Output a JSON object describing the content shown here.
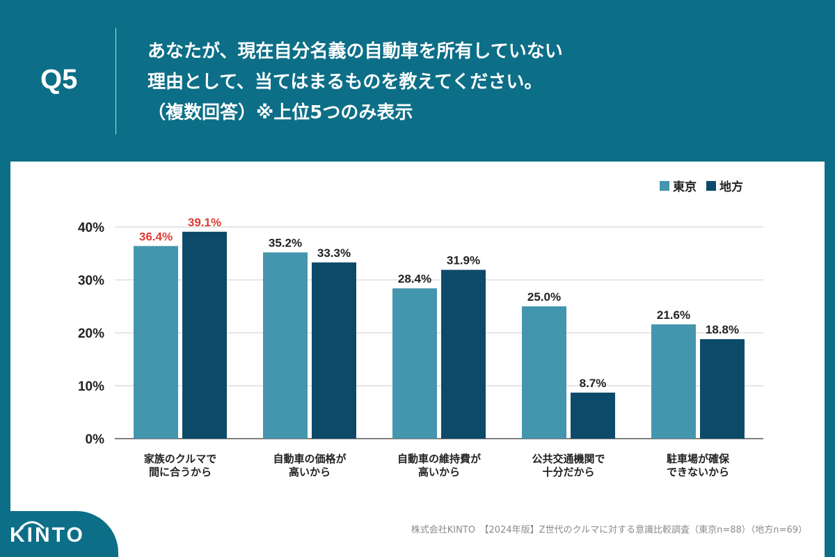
{
  "header": {
    "q_label": "Q5",
    "question_line1": "あなたが、現在自分名義の自動車を所有していない",
    "question_line2": "理由として、当てはまるものを教えてください。",
    "question_line3": "（複数回答）※上位5つのみ表示"
  },
  "colors": {
    "tokyo": "#4496ae",
    "chiho": "#0d4a6a",
    "highlight": "#e03a2f",
    "brand": "#0d6e87"
  },
  "chart_data": {
    "type": "bar",
    "title": "",
    "xlabel": "",
    "ylabel": "",
    "ylim": [
      0,
      40
    ],
    "yticks": [
      "0%",
      "10%",
      "20%",
      "30%",
      "40%"
    ],
    "grid": true,
    "legend_position": "top-right",
    "categories": [
      [
        "家族のクルマで",
        "間に合うから"
      ],
      [
        "自動車の価格が",
        "高いから"
      ],
      [
        "自動車の維持費が",
        "高いから"
      ],
      [
        "公共交通機関で",
        "十分だから"
      ],
      [
        "駐車場が確保",
        "できないから"
      ]
    ],
    "series": [
      {
        "name": "東京",
        "values": [
          36.4,
          35.2,
          28.4,
          25.0,
          21.6
        ],
        "labels": [
          "36.4%",
          "35.2%",
          "28.4%",
          "25.0%",
          "21.6%"
        ]
      },
      {
        "name": "地方",
        "values": [
          39.1,
          33.3,
          31.9,
          8.7,
          18.8
        ],
        "labels": [
          "39.1%",
          "33.3%",
          "31.9%",
          "8.7%",
          "18.8%"
        ]
      }
    ],
    "highlighted_category": 0
  },
  "footer": {
    "source": "株式会社KINTO　【2024年版】Z世代のクルマに対する意識比較調査（東京n=88）（地方n=69）",
    "logo": "KINTO"
  }
}
